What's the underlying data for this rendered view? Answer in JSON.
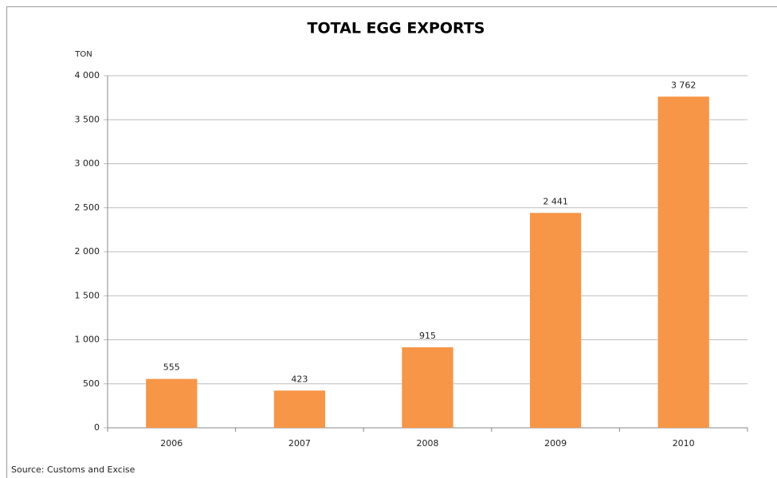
{
  "chart_data": {
    "type": "bar",
    "title": "TOTAL EGG EXPORTS",
    "y_label": "TON",
    "source": "Source: Customs and Excise",
    "categories": [
      "2006",
      "2007",
      "2008",
      "2009",
      "2010"
    ],
    "values": [
      555,
      423,
      915,
      2441,
      3762
    ],
    "value_labels": [
      "555",
      "423",
      "915",
      "2 441",
      "3 762"
    ],
    "color": "#f79646",
    "ylim": [
      0,
      4000
    ],
    "yticks": [
      0,
      500,
      {
        "value": 1000,
        "label": "1 000"
      },
      {
        "value": 1500,
        "label": "1 500"
      },
      {
        "value": 2000,
        "label": "2 000"
      },
      {
        "value": 2500,
        "label": "2 500"
      },
      {
        "value": 3000,
        "label": "3 000"
      },
      {
        "value": 3500,
        "label": "3 500"
      },
      {
        "value": 4000,
        "label": "4 000"
      }
    ],
    "grid": true
  }
}
